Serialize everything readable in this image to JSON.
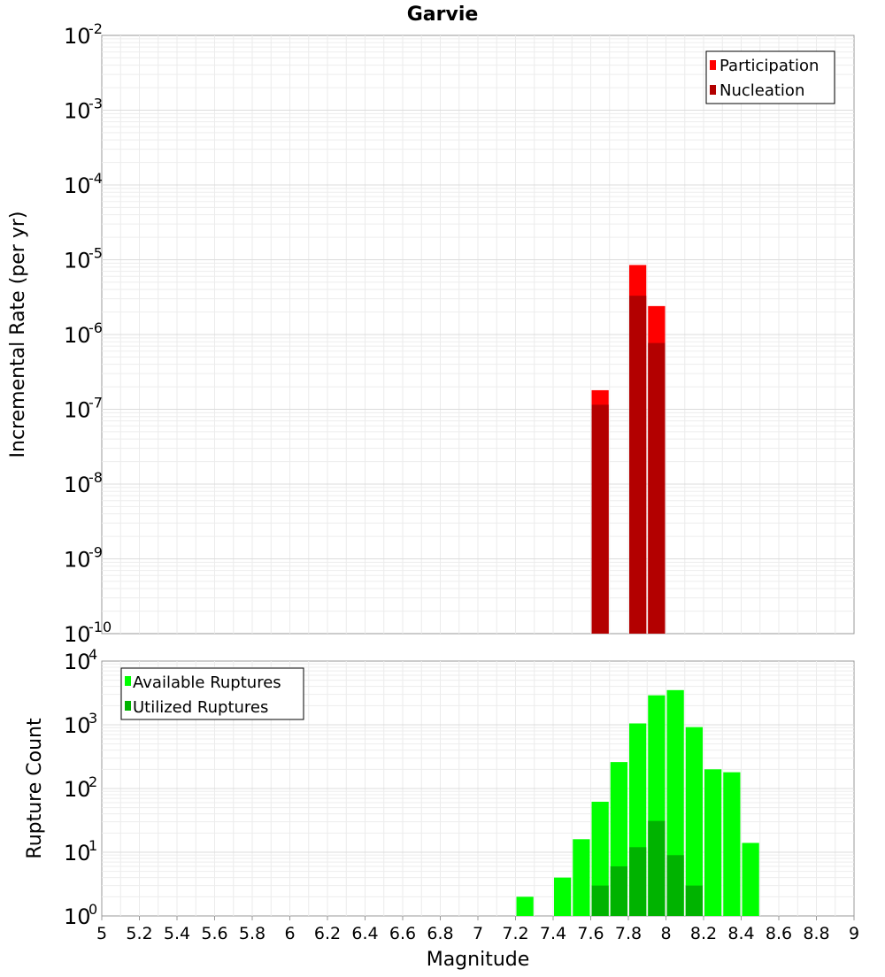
{
  "chart_data": [
    {
      "type": "bar",
      "title": "Garvie",
      "ylabel": "Incremental Rate (per yr)",
      "xlabel": "",
      "yscale": "log",
      "xlim": [
        5,
        9
      ],
      "ylim_exp": [
        -10,
        -2
      ],
      "grid": true,
      "legend_position": "top-right",
      "bar_width": 0.1,
      "series": [
        {
          "name": "Participation",
          "color": "#ff0000",
          "x": [
            7.65,
            7.85,
            7.95
          ],
          "values": [
            1.8e-07,
            8.5e-06,
            2.4e-06
          ]
        },
        {
          "name": "Nucleation",
          "color": "#b30000",
          "x": [
            7.65,
            7.85,
            7.95
          ],
          "values": [
            1.15e-07,
            3.3e-06,
            7.7e-07
          ]
        }
      ]
    },
    {
      "type": "bar",
      "title": "",
      "ylabel": "Rupture Count",
      "xlabel": "Magnitude",
      "yscale": "log",
      "xlim": [
        5,
        9
      ],
      "ylim_exp": [
        0,
        4
      ],
      "grid": true,
      "legend_position": "top-left",
      "bar_width": 0.1,
      "series": [
        {
          "name": "Available Ruptures",
          "color": "#00ff00",
          "x": [
            7.25,
            7.45,
            7.55,
            7.65,
            7.75,
            7.85,
            7.95,
            8.05,
            8.15,
            8.25,
            8.35,
            8.45
          ],
          "values": [
            2,
            4,
            16,
            62,
            260,
            1050,
            2900,
            3500,
            920,
            200,
            180,
            14
          ]
        },
        {
          "name": "Utilized Ruptures",
          "color": "#00b300",
          "x": [
            7.45,
            7.55,
            7.65,
            7.75,
            7.85,
            7.95,
            8.05,
            8.15
          ],
          "values": [
            1,
            1,
            3,
            6,
            12,
            31,
            9,
            3
          ]
        }
      ],
      "xticks": [
        "5",
        "5.2",
        "5.4",
        "5.6",
        "5.8",
        "6",
        "6.2",
        "6.4",
        "6.6",
        "6.8",
        "7",
        "7.2",
        "7.4",
        "7.6",
        "7.8",
        "8",
        "8.2",
        "8.4",
        "8.6",
        "8.8",
        "9"
      ]
    }
  ]
}
